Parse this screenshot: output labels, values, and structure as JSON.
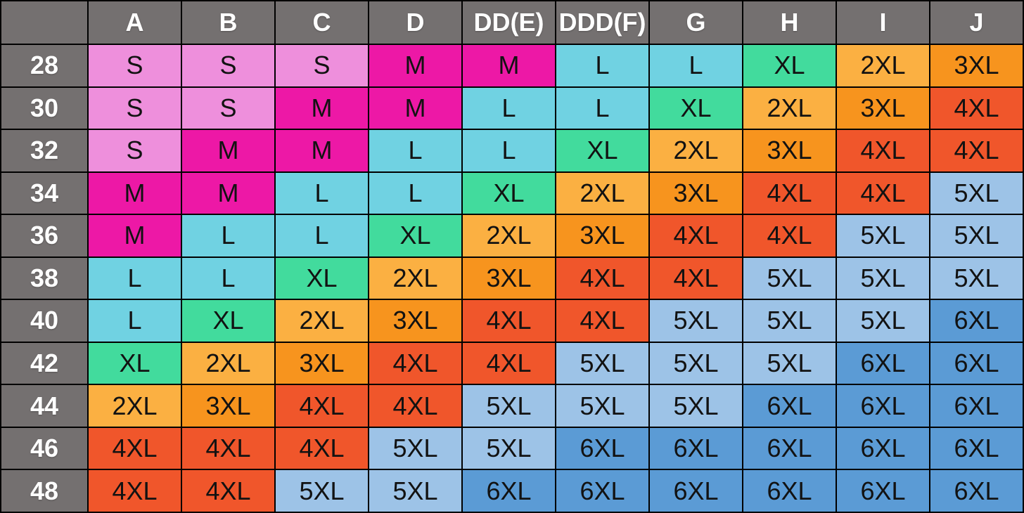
{
  "chart_data": {
    "type": "table",
    "corner_label": "",
    "columns": [
      "A",
      "B",
      "C",
      "D",
      "DD(E)",
      "DDD(F)",
      "G",
      "H",
      "I",
      "J"
    ],
    "rows": [
      {
        "label": "28",
        "cells": [
          "S",
          "S",
          "S",
          "M",
          "M",
          "L",
          "L",
          "XL",
          "2XL",
          "3XL"
        ]
      },
      {
        "label": "30",
        "cells": [
          "S",
          "S",
          "M",
          "M",
          "L",
          "L",
          "XL",
          "2XL",
          "3XL",
          "4XL"
        ]
      },
      {
        "label": "32",
        "cells": [
          "S",
          "M",
          "M",
          "L",
          "L",
          "XL",
          "2XL",
          "3XL",
          "4XL",
          "4XL"
        ]
      },
      {
        "label": "34",
        "cells": [
          "M",
          "M",
          "L",
          "L",
          "XL",
          "2XL",
          "3XL",
          "4XL",
          "4XL",
          "5XL"
        ]
      },
      {
        "label": "36",
        "cells": [
          "M",
          "L",
          "L",
          "XL",
          "2XL",
          "3XL",
          "4XL",
          "4XL",
          "5XL",
          "5XL"
        ]
      },
      {
        "label": "38",
        "cells": [
          "L",
          "L",
          "XL",
          "2XL",
          "3XL",
          "4XL",
          "4XL",
          "5XL",
          "5XL",
          "5XL"
        ]
      },
      {
        "label": "40",
        "cells": [
          "L",
          "XL",
          "2XL",
          "3XL",
          "4XL",
          "4XL",
          "5XL",
          "5XL",
          "5XL",
          "6XL"
        ]
      },
      {
        "label": "42",
        "cells": [
          "XL",
          "2XL",
          "3XL",
          "4XL",
          "4XL",
          "5XL",
          "5XL",
          "5XL",
          "6XL",
          "6XL"
        ]
      },
      {
        "label": "44",
        "cells": [
          "2XL",
          "3XL",
          "4XL",
          "4XL",
          "5XL",
          "5XL",
          "5XL",
          "6XL",
          "6XL",
          "6XL"
        ]
      },
      {
        "label": "46",
        "cells": [
          "4XL",
          "4XL",
          "4XL",
          "5XL",
          "5XL",
          "6XL",
          "6XL",
          "6XL",
          "6XL",
          "6XL"
        ]
      },
      {
        "label": "48",
        "cells": [
          "4XL",
          "4XL",
          "5XL",
          "5XL",
          "6XL",
          "6XL",
          "6XL",
          "6XL",
          "6XL",
          "6XL"
        ]
      }
    ],
    "size_color_map": {
      "S": "#EE8FDC",
      "M": "#ED18A6",
      "L": "#70D2E2",
      "XL": "#42DB9D",
      "2XL": "#FBB042",
      "3XL": "#F7941E",
      "4XL": "#F0562B",
      "5XL": "#9DC3E7",
      "6XL": "#5B9BD5"
    },
    "theme": {
      "header_bg": "#747070",
      "header_text": "#FFFFFF",
      "cell_text": "#121212",
      "grid_border": "#000000"
    }
  }
}
